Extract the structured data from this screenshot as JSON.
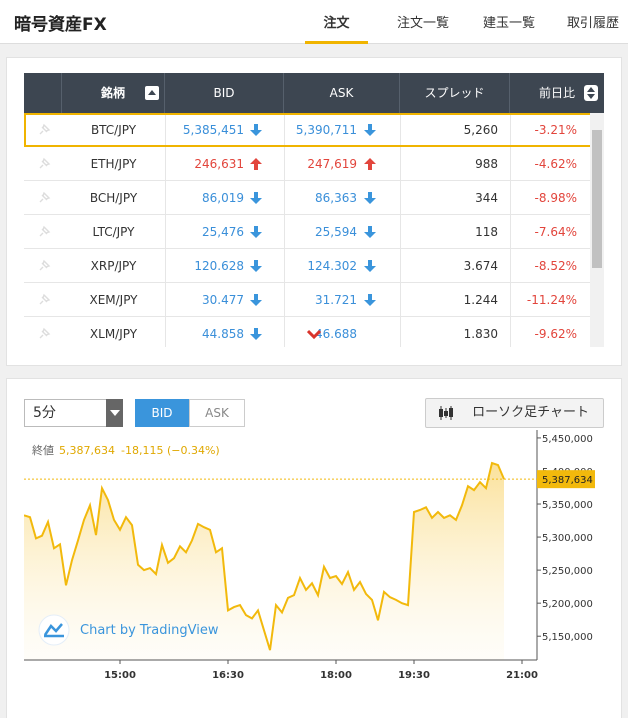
{
  "header": {
    "title": "暗号資産FX",
    "tabs": [
      "注文",
      "注文一覧",
      "建玉一覧",
      "取引履歴"
    ],
    "active_tab": 0
  },
  "table": {
    "columns": [
      "銘柄",
      "BID",
      "ASK",
      "スプレッド",
      "前日比"
    ],
    "rows": [
      [
        "BTC/JPY",
        "5,385,451",
        "5,390,711",
        "5,260",
        "-3.21%"
      ],
      [
        "ETH/JPY",
        "246,631",
        "247,619",
        "988",
        "-4.62%"
      ],
      [
        "BCH/JPY",
        "86,019",
        "86,363",
        "344",
        "-8.98%"
      ],
      [
        "LTC/JPY",
        "25,476",
        "25,594",
        "118",
        "-7.64%"
      ],
      [
        "XRP/JPY",
        "120.628",
        "124.302",
        "3.674",
        "-8.52%"
      ],
      [
        "XEM/JPY",
        "30.477",
        "31.721",
        "1.244",
        "-11.24%"
      ],
      [
        "XLM/JPY",
        "44.858",
        "46.688",
        "1.830",
        "-9.62%"
      ]
    ],
    "bid_direction": [
      "down",
      "up",
      "down",
      "down",
      "down",
      "down",
      "down"
    ],
    "ask_direction": [
      "down",
      "up",
      "down",
      "down",
      "down",
      "down",
      "drop"
    ],
    "selected_row": 0
  },
  "chart_controls": {
    "interval": "5分",
    "price_types": [
      "BID",
      "ASK"
    ],
    "active_price_type": 0,
    "chart_button": "ローソク足チャート"
  },
  "chart_data": {
    "type": "area",
    "color": "#f2b90c",
    "legend": {
      "label": "終値",
      "close": "5,387,634",
      "change": "-18,115 (−0.34%)"
    },
    "price_tag": "5,387,634",
    "watermark": "Chart by TradingView",
    "x": [
      0,
      1,
      2,
      3,
      4,
      5,
      6,
      7,
      8,
      9,
      10,
      11,
      12,
      13,
      14,
      15,
      16,
      17,
      18,
      19,
      20,
      21,
      22,
      23,
      24,
      25,
      26,
      27,
      28,
      29,
      30,
      31,
      32,
      33,
      34,
      35,
      36,
      37,
      38,
      39,
      40,
      41,
      42,
      43,
      44,
      45,
      46,
      47,
      48,
      49,
      50,
      51,
      52,
      53,
      54,
      55,
      56,
      57,
      58,
      59,
      60,
      61,
      62,
      63,
      64,
      65,
      66,
      67,
      68,
      69,
      70,
      71,
      72,
      73,
      74,
      75,
      76,
      77,
      78,
      79,
      80
    ],
    "values": [
      5333000,
      5330000,
      5298000,
      5302000,
      5323000,
      5283000,
      5289000,
      5227000,
      5265000,
      5295000,
      5326000,
      5348000,
      5303000,
      5374000,
      5356000,
      5326000,
      5311000,
      5330000,
      5318000,
      5258000,
      5250000,
      5253000,
      5244000,
      5288000,
      5261000,
      5268000,
      5286000,
      5277000,
      5295000,
      5320000,
      5315000,
      5311000,
      5277000,
      5283000,
      5189000,
      5194000,
      5197000,
      5182000,
      5177000,
      5189000,
      5159000,
      5129000,
      5197000,
      5186000,
      5208000,
      5212000,
      5238000,
      5220000,
      5230000,
      5212000,
      5255000,
      5238000,
      5241000,
      5229000,
      5247000,
      5220000,
      5232000,
      5214000,
      5205000,
      5174000,
      5217000,
      5209000,
      5205000,
      5200000,
      5197000,
      5338000,
      5341000,
      5345000,
      5329000,
      5338000,
      5329000,
      5333000,
      5326000,
      5348000,
      5377000,
      5371000,
      5383000,
      5374000,
      5412000,
      5409000,
      5387634
    ],
    "xlim": [
      0,
      85.5
    ],
    "xticks": [
      {
        "value": 16,
        "label": "15:00"
      },
      {
        "value": 34,
        "label": "16:30"
      },
      {
        "value": 52,
        "label": "18:00"
      },
      {
        "value": 65,
        "label": "19:30"
      },
      {
        "value": 83,
        "label": "21:00"
      }
    ],
    "ylim": [
      5114000,
      5462000
    ],
    "yticks": [
      {
        "value": 5150000,
        "label": "5,150,000"
      },
      {
        "value": 5200000,
        "label": "5,200,000"
      },
      {
        "value": 5250000,
        "label": "5,250,000"
      },
      {
        "value": 5300000,
        "label": "5,300,000"
      },
      {
        "value": 5350000,
        "label": "5,350,000"
      },
      {
        "value": 5400000,
        "label": "5,400,000"
      },
      {
        "value": 5450000,
        "label": "5,450,000"
      }
    ]
  }
}
